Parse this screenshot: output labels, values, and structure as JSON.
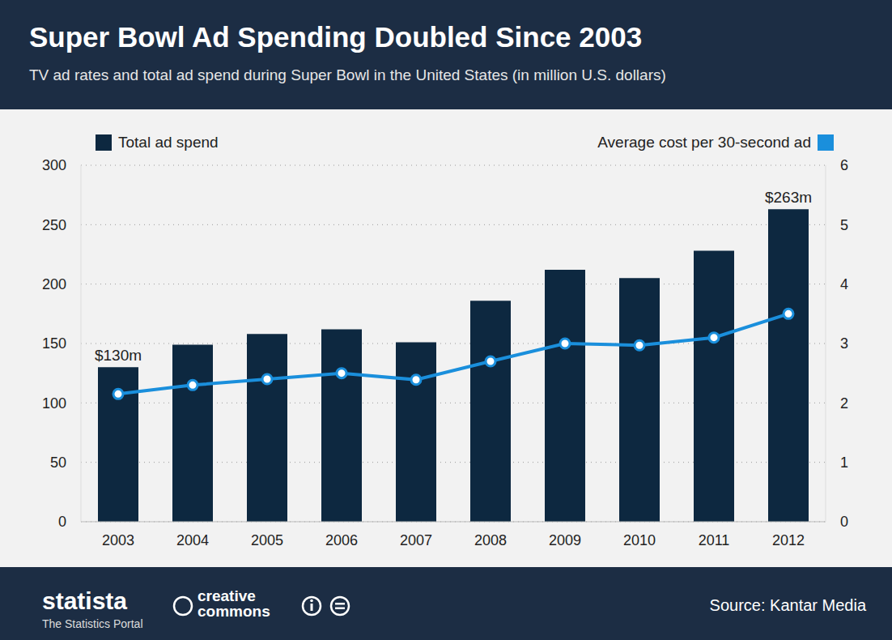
{
  "chart_data": {
    "type": "bar",
    "title": "Super Bowl Ad Spending Doubled Since 2003",
    "subtitle": "TV ad rates and total ad spend during Super Bowl in the United States (in million U.S. dollars)",
    "categories": [
      "2003",
      "2004",
      "2005",
      "2006",
      "2007",
      "2008",
      "2009",
      "2010",
      "2011",
      "2012"
    ],
    "series": [
      {
        "name": "Total ad spend",
        "type": "bar",
        "color": "#0d2840",
        "values": [
          130,
          149,
          158,
          162,
          151,
          186,
          212,
          205,
          228,
          263
        ],
        "value_labels": [
          "$130m",
          null,
          null,
          null,
          null,
          null,
          null,
          null,
          null,
          "$263m"
        ]
      },
      {
        "name": "Average cost per 30-second ad",
        "type": "line",
        "color": "#1a8fdc",
        "marker": "circle",
        "axis": "y2",
        "values": [
          2.15,
          2.3,
          2.4,
          2.5,
          2.39,
          2.7,
          3.0,
          2.97,
          3.1,
          3.5
        ]
      }
    ],
    "ylim": [
      0,
      300
    ],
    "yticks": [
      0,
      50,
      100,
      150,
      200,
      250,
      300
    ],
    "y2lim": [
      0,
      6
    ],
    "y2ticks": [
      0,
      1,
      2,
      3,
      4,
      5,
      6
    ],
    "grid": true,
    "legend": "top",
    "data_labels": true
  },
  "footer": {
    "brand": "statista",
    "brand_subtitle": "The Statistics Portal",
    "license": "creative commons",
    "source": "Source: Kantar Media"
  }
}
